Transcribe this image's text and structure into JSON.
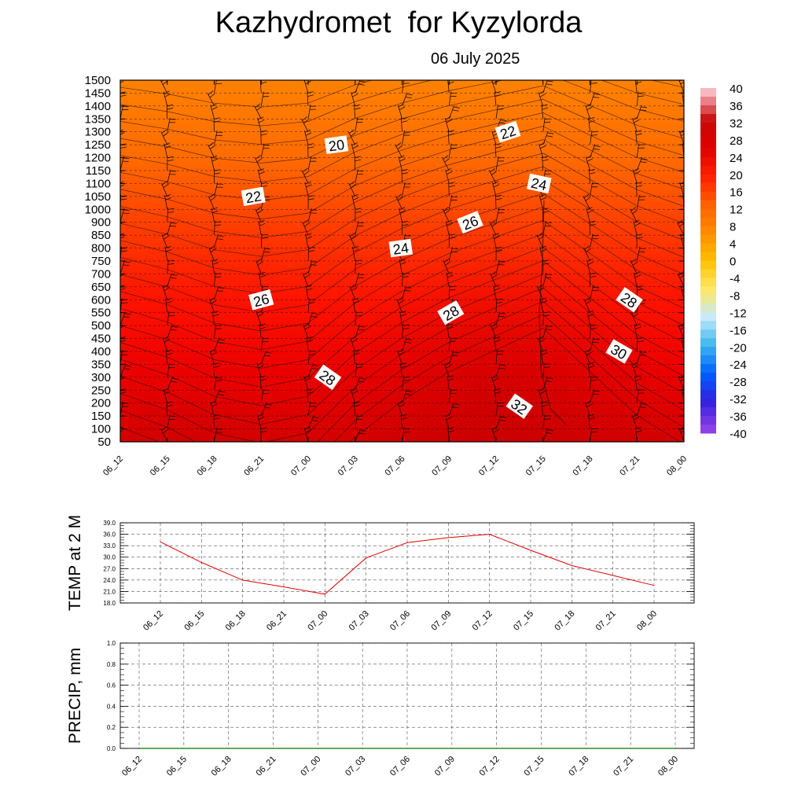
{
  "header": {
    "title": "Kazhydromet  for Kyzylorda",
    "date": "06 July 2025"
  },
  "chart_data": [
    {
      "type": "heatmap",
      "name": "temperature-wind-cross-section",
      "x_labels": [
        "06_12",
        "06_15",
        "06_18",
        "06_21",
        "07_00",
        "07_03",
        "07_06",
        "07_09",
        "07_12",
        "07_15",
        "07_18",
        "07_21",
        "08_00"
      ],
      "y_labels": [
        "1500",
        "1450",
        "1400",
        "1350",
        "1300",
        "1250",
        "1200",
        "1150",
        "1100",
        "1050",
        "1000",
        "900",
        "850",
        "800",
        "750",
        "700",
        "650",
        "600",
        "550",
        "500",
        "450",
        "400",
        "350",
        "300",
        "250",
        "200",
        "150",
        "100",
        "50"
      ],
      "colorbar": {
        "labels": [
          "40",
          "36",
          "32",
          "28",
          "24",
          "20",
          "16",
          "12",
          "8",
          "4",
          "0",
          "-4",
          "-8",
          "-12",
          "-16",
          "-20",
          "-24",
          "-28",
          "-32",
          "-36",
          "-40"
        ],
        "colors": [
          "#f8b8c0",
          "#c80808",
          "#e00000",
          "#ff2000",
          "#ff6000",
          "#ff8c00",
          "#ffc000",
          "#ffe860",
          "#c8eaf6",
          "#40b8f0",
          "#0060ff",
          "#3020e0",
          "#8c40e8"
        ]
      },
      "contour_labels": [
        {
          "text": "20",
          "time": "07_00",
          "level": "1250"
        },
        {
          "text": "22",
          "time": "06_21",
          "level": "1050"
        },
        {
          "text": "24",
          "time": "07_03",
          "level": "800"
        },
        {
          "text": "26",
          "time": "06_21",
          "level": "600"
        },
        {
          "text": "28",
          "time": "07_00",
          "level": "300"
        },
        {
          "text": "22",
          "time": "07_12",
          "level": "1300"
        },
        {
          "text": "24",
          "time": "07_15",
          "level": "1100"
        },
        {
          "text": "26",
          "time": "07_12",
          "level": "900"
        },
        {
          "text": "28",
          "time": "07_09",
          "level": "550"
        },
        {
          "text": "28",
          "time": "07_18",
          "level": "600"
        },
        {
          "text": "30",
          "time": "07_18",
          "level": "400"
        },
        {
          "text": "32",
          "time": "07_15",
          "level": "200"
        }
      ]
    },
    {
      "type": "line",
      "name": "temperature-2m",
      "ylabel": "TEMP at 2 M",
      "categories": [
        "06_12",
        "06_15",
        "06_18",
        "06_21",
        "07_00",
        "07_03",
        "07_06",
        "07_09",
        "07_12",
        "07_15",
        "07_18",
        "07_21",
        "08_00"
      ],
      "ylim": [
        18.0,
        39.0
      ],
      "yticks": [
        "39.0",
        "36.0",
        "33.0",
        "30.0",
        "27.0",
        "24.0",
        "21.0",
        "18.0"
      ],
      "series": [
        {
          "color": "#e00000",
          "values": [
            34.0,
            28.6,
            24.0,
            22.2,
            20.3,
            29.8,
            33.8,
            35.1,
            36.0,
            31.8,
            27.8,
            25.2,
            22.6
          ]
        }
      ]
    },
    {
      "type": "line",
      "name": "precipitation",
      "ylabel": "PRECIP, mm",
      "categories": [
        "06_12",
        "06_15",
        "06_18",
        "06_21",
        "07_00",
        "07_03",
        "07_06",
        "07_09",
        "07_12",
        "07_15",
        "07_18",
        "07_21",
        "08_00"
      ],
      "ylim": [
        0.0,
        1.0
      ],
      "yticks": [
        "1.0",
        "0.8",
        "0.6",
        "0.4",
        "0.2",
        "0.0"
      ],
      "series": [
        {
          "color": "#2e8b2e",
          "values": [
            0,
            0,
            0,
            0,
            0,
            0,
            0,
            0,
            0,
            0,
            0,
            0,
            0
          ]
        }
      ]
    }
  ]
}
